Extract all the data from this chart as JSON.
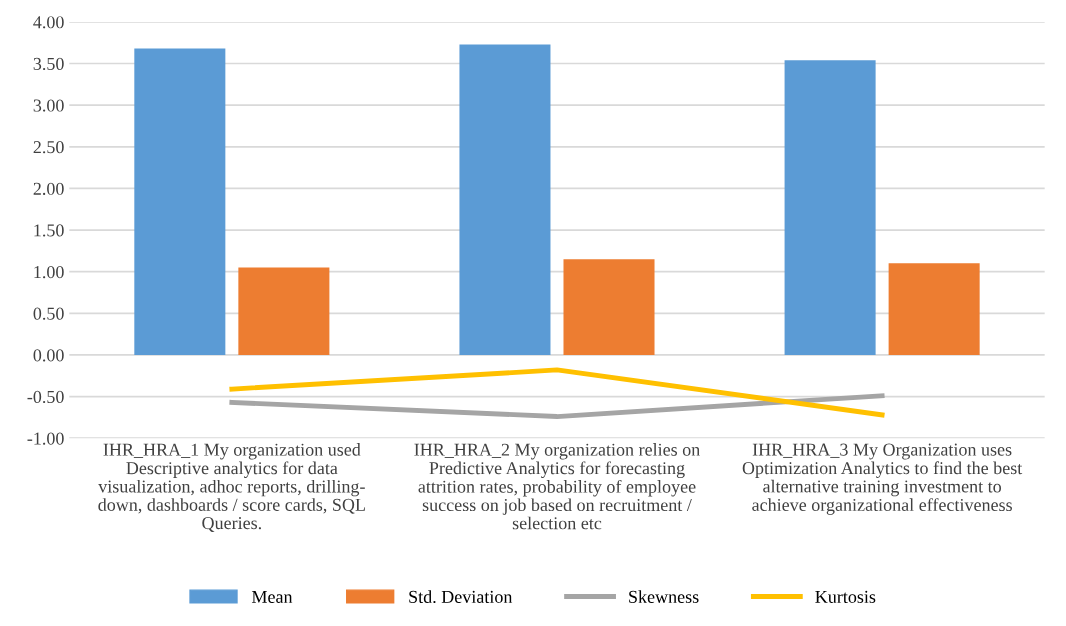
{
  "chart_data": {
    "type": "bar",
    "categories": [
      "IHR_HRA_1 My organization used\nDescriptive analytics for data\nvisualization, adhoc reports, drilling-\ndown, dashboards / score cards, SQL\nQueries.",
      "IHR_HRA_2 My organization relies on\nPredictive Analytics for forecasting\nattrition rates, probability of employee\nsuccess on job based on recruitment /\nselection etc",
      "IHR_HRA_3 My Organization uses\nOptimization Analytics to find the best\nalternative training investment to\nachieve organizational effectiveness"
    ],
    "series": [
      {
        "name": "Mean",
        "color": "#5b9bd5",
        "values": [
          3.68,
          3.73,
          3.54
        ]
      },
      {
        "name": "Std. Deviation",
        "color": "#ed7d31",
        "values": [
          1.05,
          1.15,
          1.1
        ]
      },
      {
        "name": "Skewness",
        "type": "line",
        "color": "#a5a5a5",
        "values": [
          -0.57,
          -0.74,
          -0.49
        ]
      },
      {
        "name": "Kurtosis",
        "type": "line",
        "color": "#ffc000",
        "values": [
          -0.41,
          -0.18,
          -0.72
        ]
      }
    ],
    "ylim": [
      -1.0,
      4.0
    ],
    "yticks": [
      {
        "value": -1.0,
        "label": "-1.00"
      },
      {
        "value": -0.5,
        "label": "-0.50"
      },
      {
        "value": 0,
        "label": "0.00"
      },
      {
        "value": 0.5,
        "label": "0.50"
      },
      {
        "value": 1.0,
        "label": "1.00"
      },
      {
        "value": 1.5,
        "label": "1.50"
      },
      {
        "value": 2.0,
        "label": "2.00"
      },
      {
        "value": 2.5,
        "label": "2.50"
      },
      {
        "value": 3.0,
        "label": "3.00"
      },
      {
        "value": 3.5,
        "label": "3.50"
      },
      {
        "value": 4.0,
        "label": "4.00"
      }
    ],
    "grid": "y",
    "legend": "bottom",
    "marker": "none",
    "line_style": "solid"
  }
}
